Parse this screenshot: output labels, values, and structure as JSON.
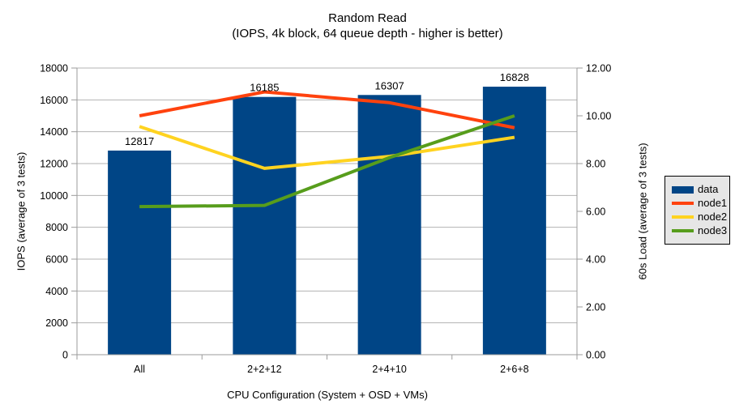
{
  "chart_data": {
    "type": "bar",
    "title": "Random Read",
    "subtitle": "(IOPS, 4k block, 64 queue depth - higher is better)",
    "xlabel": "CPU Configuration (System + OSD + VMs)",
    "ylabel_left": "IOPS (average of 3 tests)",
    "ylabel_right": "60s Load (average of 3 tests)",
    "categories": [
      "All",
      "2+2+12",
      "2+4+10",
      "2+6+8"
    ],
    "series": [
      {
        "name": "data",
        "type": "bar",
        "axis": "left",
        "color": "#004586",
        "values": [
          12817,
          16185,
          16307,
          16828
        ],
        "labels": [
          "12817",
          "16185",
          "16307",
          "16828"
        ]
      },
      {
        "name": "node1",
        "type": "line",
        "axis": "right",
        "color": "#FF420E",
        "values": [
          10.0,
          11.0,
          10.55,
          9.5
        ]
      },
      {
        "name": "node2",
        "type": "line",
        "axis": "right",
        "color": "#FFD320",
        "values": [
          9.55,
          7.8,
          8.3,
          9.1
        ]
      },
      {
        "name": "node3",
        "type": "line",
        "axis": "right",
        "color": "#579D1C",
        "values": [
          6.2,
          6.25,
          8.25,
          10.0
        ]
      }
    ],
    "left_axis": {
      "min": 0,
      "max": 18000,
      "step": 2000
    },
    "right_axis": {
      "min": 0,
      "max": 12,
      "step": 2,
      "decimals": 2
    },
    "legend": {
      "position": "right",
      "entries": [
        "data",
        "node1",
        "node2",
        "node3"
      ]
    },
    "grid": {
      "horizontal": true,
      "color": "#b3b3b3"
    },
    "axis_color": "#9b9b9b",
    "background": "#ffffff"
  }
}
